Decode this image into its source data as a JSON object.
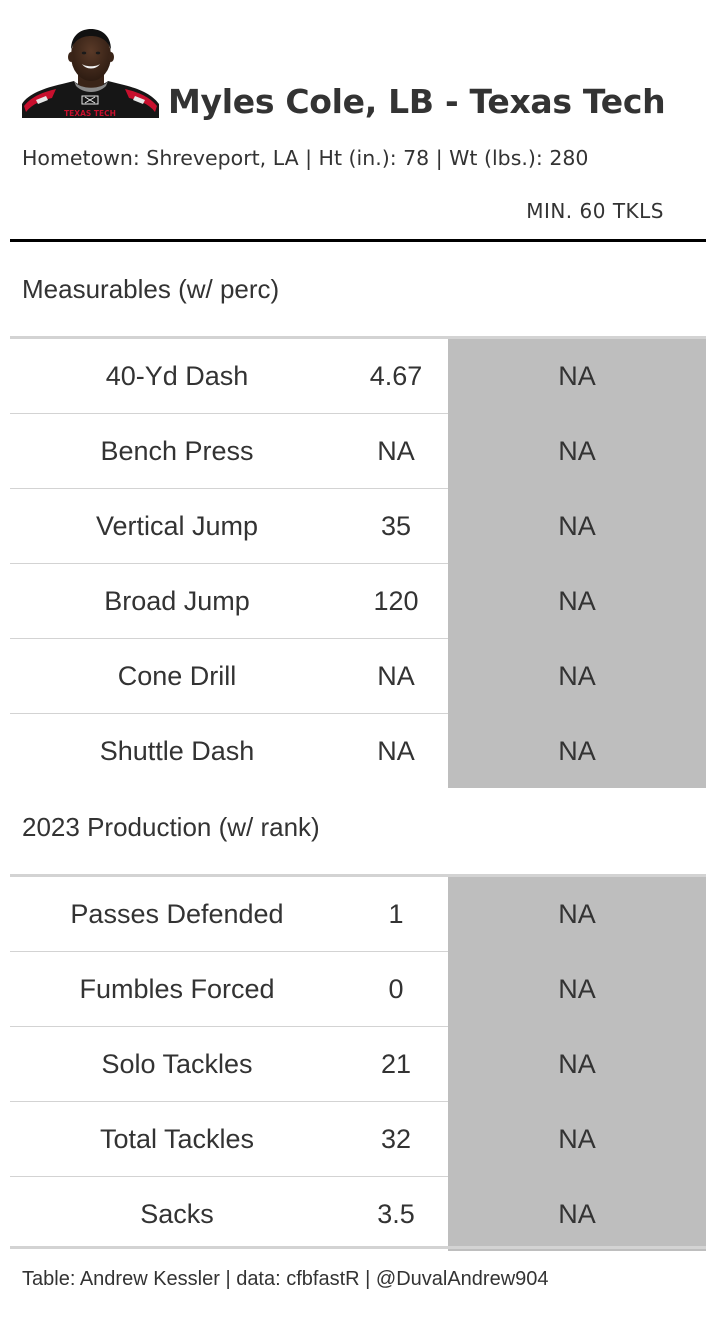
{
  "header": {
    "title": "Myles Cole, LB - Texas Tech",
    "subtitle": "Hometown: Shreveport, LA | Ht (in.): 78 | Wt (lbs.): 280",
    "min_label": "MIN. 60 TKLS",
    "headshot_icon": "player-headshot",
    "jersey_text": "TEXAS TECH"
  },
  "measurables": {
    "heading": "Measurables (w/ perc)",
    "rows": [
      {
        "label": "40-Yd Dash",
        "value": "4.67",
        "perc": "NA"
      },
      {
        "label": "Bench Press",
        "value": "NA",
        "perc": "NA"
      },
      {
        "label": "Vertical Jump",
        "value": "35",
        "perc": "NA"
      },
      {
        "label": "Broad Jump",
        "value": "120",
        "perc": "NA"
      },
      {
        "label": "Cone Drill",
        "value": "NA",
        "perc": "NA"
      },
      {
        "label": "Shuttle Dash",
        "value": "NA",
        "perc": "NA"
      }
    ]
  },
  "production": {
    "heading": "2023 Production (w/ rank)",
    "rows": [
      {
        "label": "Passes Defended",
        "value": "1",
        "perc": "NA"
      },
      {
        "label": "Fumbles Forced",
        "value": "0",
        "perc": "NA"
      },
      {
        "label": "Solo Tackles",
        "value": "21",
        "perc": "NA"
      },
      {
        "label": "Total Tackles",
        "value": "32",
        "perc": "NA"
      },
      {
        "label": "Sacks",
        "value": "3.5",
        "perc": "NA"
      }
    ]
  },
  "footer": {
    "credit": "Table: Andrew Kessler | data: cfbfastR | @DuvalAndrew904"
  },
  "colors": {
    "text": "#333333",
    "na_cell": "#bebebe",
    "rule_dark": "#000000",
    "rule_light": "#d3d3d3"
  }
}
